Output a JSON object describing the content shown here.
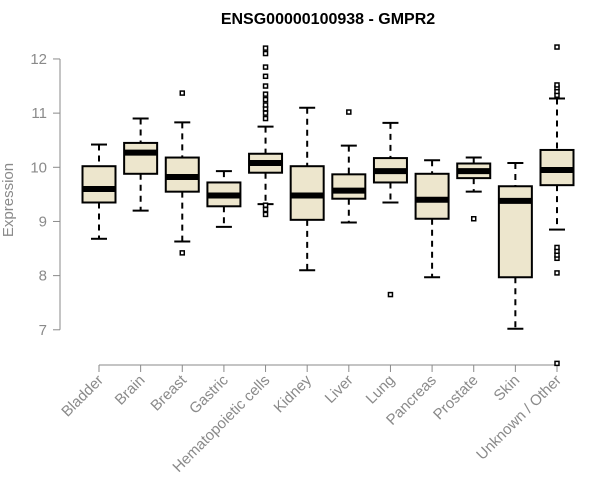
{
  "chart_data": {
    "type": "boxplot",
    "title": "ENSG00000100938 - GMPR2",
    "xlabel": "",
    "ylabel": "Expression",
    "ylim": [
      6.35,
      12.35
    ],
    "yticks": [
      7,
      8,
      9,
      10,
      11,
      12
    ],
    "grid": false,
    "categories": [
      "Bladder",
      "Brain",
      "Breast",
      "Gastric",
      "Hematopoietic cells",
      "Kidney",
      "Liver",
      "Lung",
      "Pancreas",
      "Prostate",
      "Skin",
      "Unknown / Other"
    ],
    "boxes": [
      {
        "min": 8.68,
        "q1": 9.35,
        "median": 9.6,
        "q3": 10.02,
        "max": 10.42,
        "outliers": []
      },
      {
        "min": 9.2,
        "q1": 9.88,
        "median": 10.27,
        "q3": 10.45,
        "max": 10.9,
        "outliers": []
      },
      {
        "min": 8.63,
        "q1": 9.55,
        "median": 9.82,
        "q3": 10.18,
        "max": 10.83,
        "outliers": [
          8.42,
          11.37
        ]
      },
      {
        "min": 8.9,
        "q1": 9.28,
        "median": 9.48,
        "q3": 9.72,
        "max": 9.93,
        "outliers": []
      },
      {
        "min": 9.32,
        "q1": 9.9,
        "median": 10.08,
        "q3": 10.25,
        "max": 10.75,
        "outliers": [
          9.13,
          9.22,
          9.3,
          10.9,
          11.0,
          11.08,
          11.15,
          11.25,
          11.35,
          11.5,
          11.68,
          11.85,
          12.1,
          12.2
        ]
      },
      {
        "min": 8.1,
        "q1": 9.03,
        "median": 9.48,
        "q3": 10.02,
        "max": 11.1,
        "outliers": []
      },
      {
        "min": 8.98,
        "q1": 9.42,
        "median": 9.57,
        "q3": 9.87,
        "max": 10.4,
        "outliers": [
          11.02
        ]
      },
      {
        "min": 9.35,
        "q1": 9.72,
        "median": 9.93,
        "q3": 10.17,
        "max": 10.82,
        "outliers": [
          7.65
        ]
      },
      {
        "min": 7.97,
        "q1": 9.05,
        "median": 9.4,
        "q3": 9.88,
        "max": 10.13,
        "outliers": []
      },
      {
        "min": 9.55,
        "q1": 9.8,
        "median": 9.93,
        "q3": 10.07,
        "max": 10.18,
        "outliers": [
          9.05
        ]
      },
      {
        "min": 7.02,
        "q1": 7.97,
        "median": 9.38,
        "q3": 9.65,
        "max": 10.08,
        "outliers": []
      },
      {
        "min": 8.85,
        "q1": 9.67,
        "median": 9.95,
        "q3": 10.32,
        "max": 11.27,
        "outliers": [
          6.38,
          8.05,
          8.32,
          8.38,
          8.45,
          8.52,
          11.33,
          11.4,
          11.47,
          11.52,
          12.22
        ]
      }
    ]
  },
  "colors": {
    "box_fill": "#ede6cd",
    "box_stroke": "#000000",
    "axis": "#8a8a8a"
  }
}
